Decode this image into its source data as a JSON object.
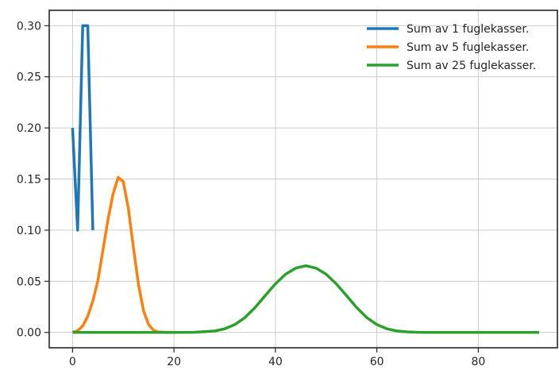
{
  "chart_data": {
    "type": "line",
    "title": "",
    "xlabel": "",
    "ylabel": "",
    "xlim": [
      -4.6,
      95.6
    ],
    "ylim": [
      -0.015,
      0.315
    ],
    "xticks": [
      0,
      20,
      40,
      60,
      80
    ],
    "yticks": [
      0.0,
      0.05,
      0.1,
      0.15,
      0.2,
      0.25,
      0.3
    ],
    "ytick_labels": [
      "0.00",
      "0.05",
      "0.10",
      "0.15",
      "0.20",
      "0.25",
      "0.30"
    ],
    "xtick_labels": [
      "0",
      "20",
      "40",
      "60",
      "80"
    ],
    "grid": true,
    "legend_position": "top-right",
    "series": [
      {
        "name": "Sum av 1 fuglekasser.",
        "color": "#1f77b4",
        "x": [
          0,
          1,
          2,
          3,
          4
        ],
        "y": [
          0.2,
          0.1,
          0.3,
          0.3,
          0.1
        ]
      },
      {
        "name": "Sum av 5 fuglekasser.",
        "color": "#ff7f0e",
        "x": [
          0,
          1,
          2,
          3,
          4,
          5,
          6,
          7,
          8,
          9,
          10,
          11,
          12,
          13,
          14,
          15,
          16,
          17,
          18,
          19,
          20
        ],
        "y": [
          0.0003,
          0.0016,
          0.0063,
          0.0158,
          0.0307,
          0.0508,
          0.0808,
          0.1107,
          0.1357,
          0.1516,
          0.1475,
          0.1213,
          0.0831,
          0.0468,
          0.0213,
          0.0076,
          0.002,
          0.0004,
          0.0001,
          0.0,
          0.0
        ]
      },
      {
        "name": "Sum av 25 fuglekasser.",
        "color": "#2ca02c",
        "x": [
          0,
          5,
          10,
          15,
          20,
          24,
          28,
          30,
          32,
          34,
          36,
          38,
          40,
          42,
          44,
          46,
          48,
          50,
          52,
          54,
          56,
          58,
          60,
          62,
          64,
          66,
          68,
          70,
          75,
          80,
          85,
          92
        ],
        "y": [
          0.0,
          0.0,
          0.0,
          0.0,
          0.0,
          0.0001,
          0.0014,
          0.0035,
          0.0077,
          0.0146,
          0.0244,
          0.0361,
          0.0475,
          0.0569,
          0.0629,
          0.0652,
          0.0629,
          0.0569,
          0.0475,
          0.0361,
          0.0244,
          0.0146,
          0.0077,
          0.0035,
          0.0014,
          0.0005,
          0.0001,
          0.0,
          0.0,
          0.0,
          0.0,
          0.0
        ]
      }
    ]
  }
}
